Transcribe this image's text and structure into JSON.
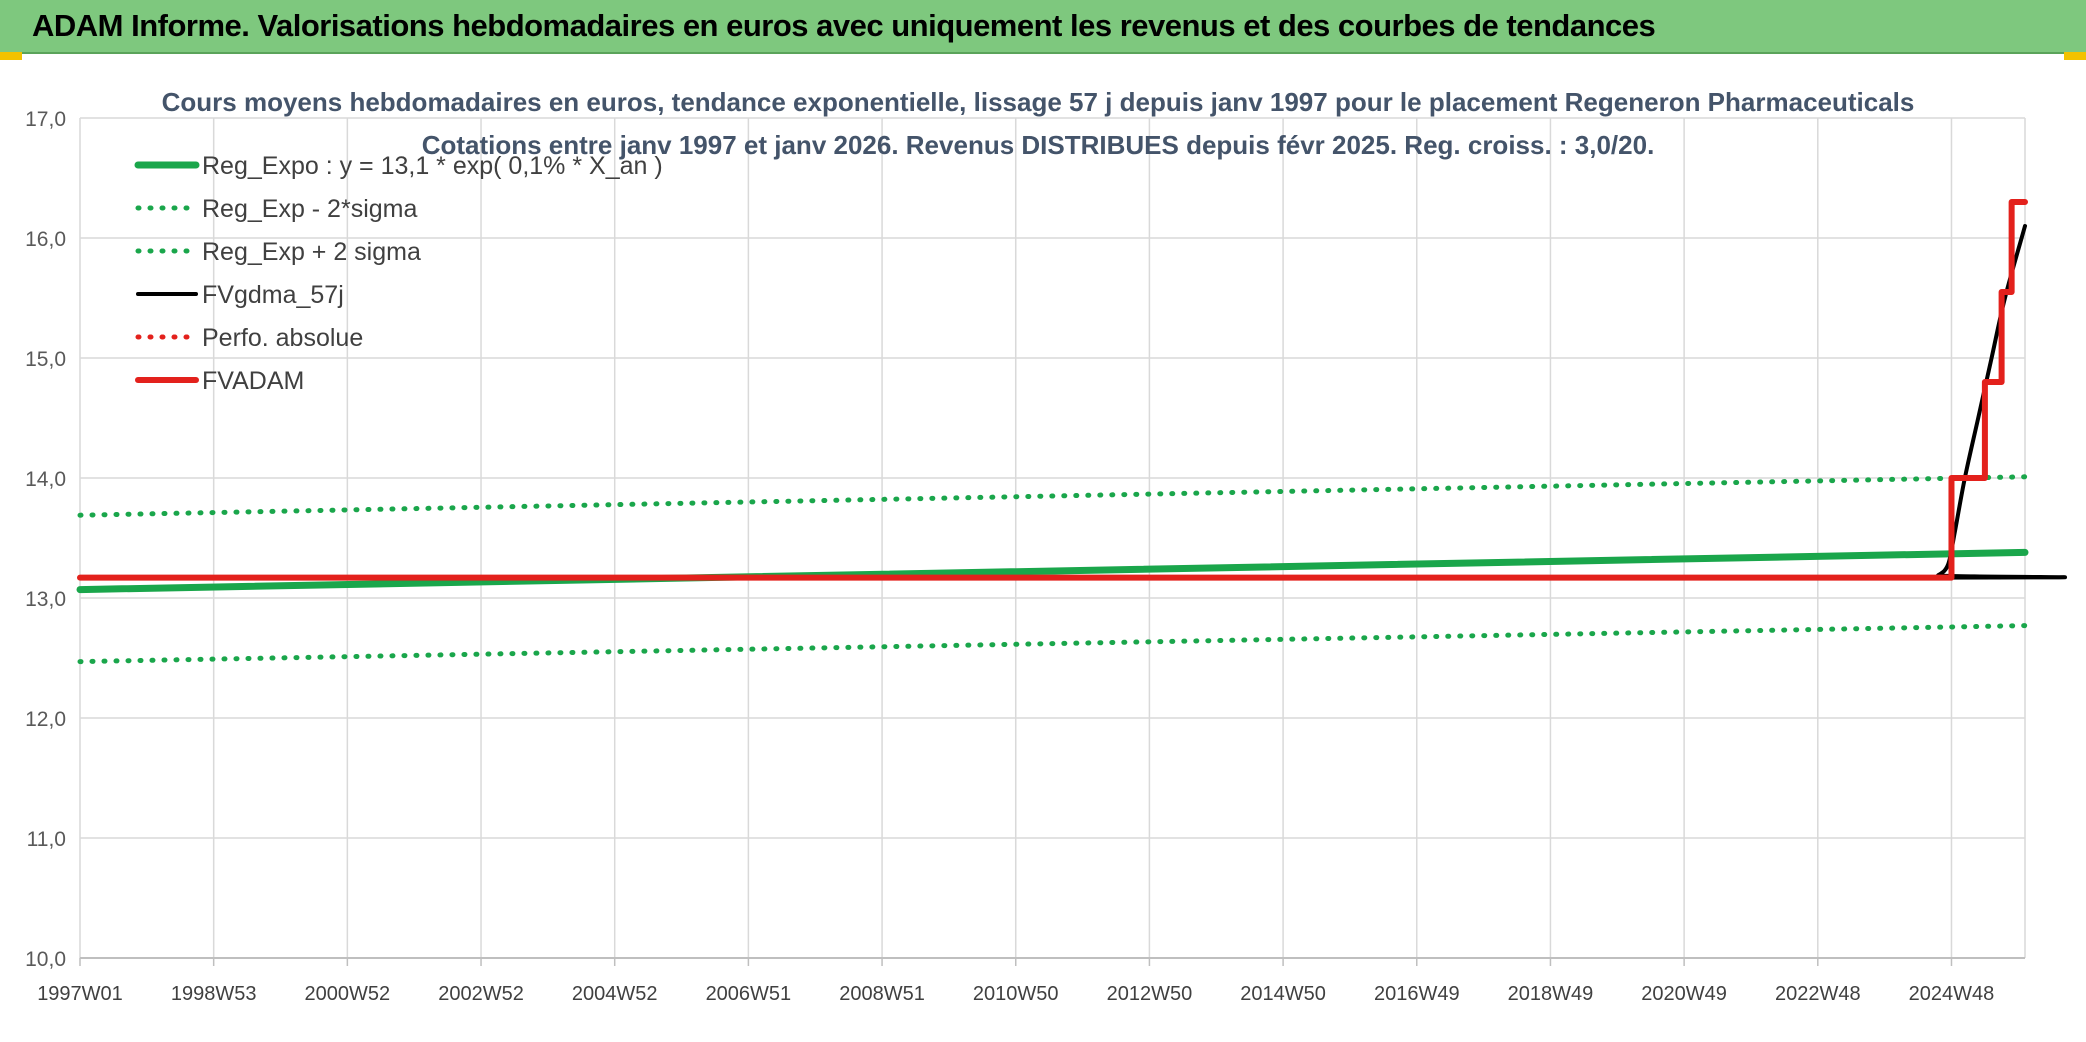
{
  "header": {
    "title": "ADAM Informe. Valorisations hebdomadaires en euros avec uniquement les revenus et des courbes de tendances",
    "background_color": "#7ec87e"
  },
  "chart_data": {
    "type": "line",
    "title": "Cours moyens hebdomadaires en euros, tendance exponentielle, lissage 57 j depuis janv 1997 pour le placement Regeneron Pharmaceuticals",
    "subtitle": "Cotations entre janv 1997 et janv 2026. Revenus DISTRIBUES depuis févr 2025. Reg. croiss. : 3,0/20.",
    "xlabel": "",
    "ylabel": "",
    "ylim": [
      10.0,
      17.0
    ],
    "yticks": [
      "10,0",
      "11,0",
      "12,0",
      "13,0",
      "14,0",
      "15,0",
      "16,0",
      "17,0"
    ],
    "xlim": [
      1997.0,
      2026.1
    ],
    "xticks": [
      {
        "label": "1997W01",
        "x": 1997.0
      },
      {
        "label": "1998W53",
        "x": 1999.0
      },
      {
        "label": "2000W52",
        "x": 2001.0
      },
      {
        "label": "2002W52",
        "x": 2003.0
      },
      {
        "label": "2004W52",
        "x": 2005.0
      },
      {
        "label": "2006W51",
        "x": 2007.0
      },
      {
        "label": "2008W51",
        "x": 2009.0
      },
      {
        "label": "2010W50",
        "x": 2011.0
      },
      {
        "label": "2012W50",
        "x": 2013.0
      },
      {
        "label": "2014W50",
        "x": 2015.0
      },
      {
        "label": "2016W49",
        "x": 2017.0
      },
      {
        "label": "2018W49",
        "x": 2019.0
      },
      {
        "label": "2020W49",
        "x": 2021.0
      },
      {
        "label": "2022W48",
        "x": 2023.0
      },
      {
        "label": "2024W48",
        "x": 2025.0
      }
    ],
    "grid": true,
    "legend_position": "top-left",
    "series": [
      {
        "name": "Reg_Expo : y = 13,1 * exp( 0,1% *  X_an )",
        "color": "#1aa64b",
        "style": "solid-thick",
        "x": [
          1997.0,
          2026.1
        ],
        "y": [
          13.07,
          13.38
        ]
      },
      {
        "name": "Reg_Exp - 2*sigma",
        "color": "#1aa64b",
        "style": "dotted",
        "x": [
          1997.0,
          2026.1
        ],
        "y": [
          12.47,
          12.77
        ]
      },
      {
        "name": "Reg_Exp + 2 sigma",
        "color": "#1aa64b",
        "style": "dotted",
        "x": [
          1997.0,
          2026.1
        ],
        "y": [
          13.69,
          14.01
        ]
      },
      {
        "name": "FVgdma_57j",
        "color": "#000000",
        "style": "solid",
        "x": [
          1997.0,
          2024.6,
          2024.8,
          2024.95,
          2025.05,
          2025.2,
          2025.4,
          2025.6,
          2025.8,
          2026.1
        ],
        "y": [
          13.17,
          13.17,
          13.19,
          13.28,
          13.55,
          14.0,
          14.5,
          15.0,
          15.5,
          16.1
        ]
      },
      {
        "name": "Perfo. absolue",
        "color": "#e3211c",
        "style": "dotted",
        "x": [],
        "y": []
      },
      {
        "name": "FVADAM",
        "color": "#e3211c",
        "style": "step-thick",
        "x": [
          1997.0,
          2025.0,
          2025.0,
          2025.5,
          2025.5,
          2025.75,
          2025.75,
          2025.9,
          2025.9,
          2026.1
        ],
        "y": [
          13.17,
          13.17,
          14.0,
          14.0,
          14.8,
          14.8,
          15.55,
          15.55,
          16.3,
          16.3
        ]
      }
    ]
  }
}
